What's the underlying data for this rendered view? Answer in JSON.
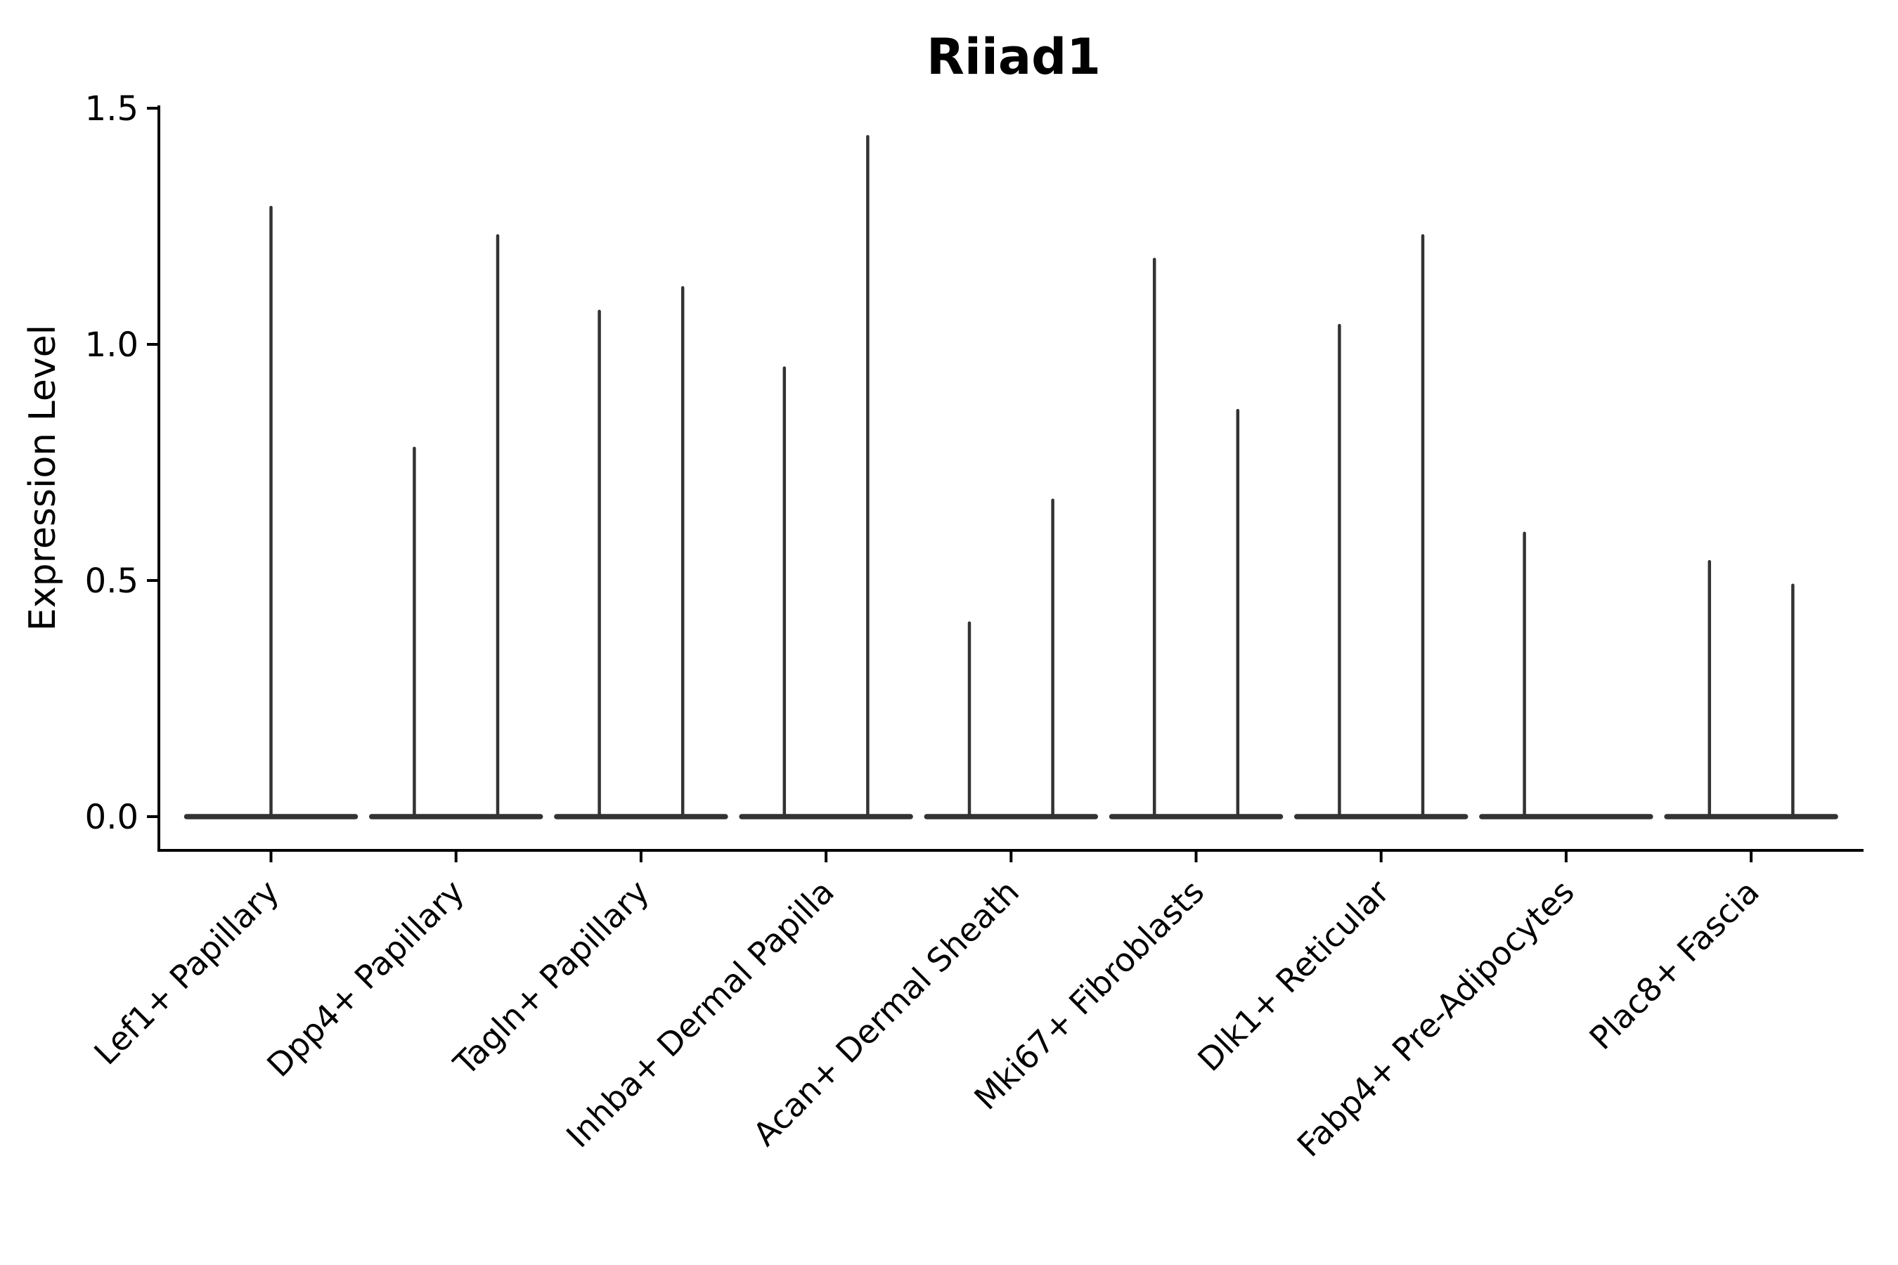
{
  "chart_data": {
    "type": "violin",
    "title": "Riiad1",
    "ylabel": "Expression Level",
    "xlabel": "",
    "ylim": [
      0.0,
      1.5
    ],
    "grid": false,
    "legend": "none",
    "yticks": [
      {
        "label": "0.0",
        "value": 0.0
      },
      {
        "label": "0.5",
        "value": 0.5
      },
      {
        "label": "1.0",
        "value": 1.0
      },
      {
        "label": "1.5",
        "value": 1.5
      }
    ],
    "categories": [
      "Lef1+ Papillary",
      "Dpp4+ Papillary",
      "Tagln+ Papillary",
      "Inhba+ Dermal Papilla",
      "Acan+ Dermal Sheath",
      "Mki67+ Fibroblasts",
      "Dlk1+ Reticular",
      "Fabp4+ Pre-Adipocytes",
      "Plac8+ Fascia"
    ],
    "violins": [
      {
        "category": "Lef1+ Papillary",
        "spikes": [
          {
            "position": "center",
            "max_expression": 1.29
          }
        ]
      },
      {
        "category": "Dpp4+ Papillary",
        "spikes": [
          {
            "position": "left",
            "max_expression": 0.78
          },
          {
            "position": "right",
            "max_expression": 1.23
          }
        ]
      },
      {
        "category": "Tagln+ Papillary",
        "spikes": [
          {
            "position": "left",
            "max_expression": 1.07
          },
          {
            "position": "right",
            "max_expression": 1.12
          }
        ]
      },
      {
        "category": "Inhba+ Dermal Papilla",
        "spikes": [
          {
            "position": "left",
            "max_expression": 0.95
          },
          {
            "position": "right",
            "max_expression": 1.44
          }
        ]
      },
      {
        "category": "Acan+ Dermal Sheath",
        "spikes": [
          {
            "position": "left",
            "max_expression": 0.41
          },
          {
            "position": "right",
            "max_expression": 0.67
          }
        ]
      },
      {
        "category": "Mki67+ Fibroblasts",
        "spikes": [
          {
            "position": "left",
            "max_expression": 1.18
          },
          {
            "position": "right",
            "max_expression": 0.86
          }
        ]
      },
      {
        "category": "Dlk1+ Reticular",
        "spikes": [
          {
            "position": "left",
            "max_expression": 1.04
          },
          {
            "position": "right",
            "max_expression": 1.23
          }
        ]
      },
      {
        "category": "Fabp4+ Pre-Adipocytes",
        "spikes": [
          {
            "position": "left",
            "max_expression": 0.6
          }
        ]
      },
      {
        "category": "Plac8+ Fascia",
        "spikes": [
          {
            "position": "left",
            "max_expression": 0.54
          },
          {
            "position": "right",
            "max_expression": 0.49
          }
        ]
      }
    ],
    "colors": {
      "violin": "#333333",
      "axis": "#000000",
      "text": "#000000",
      "background": "#ffffff"
    }
  }
}
